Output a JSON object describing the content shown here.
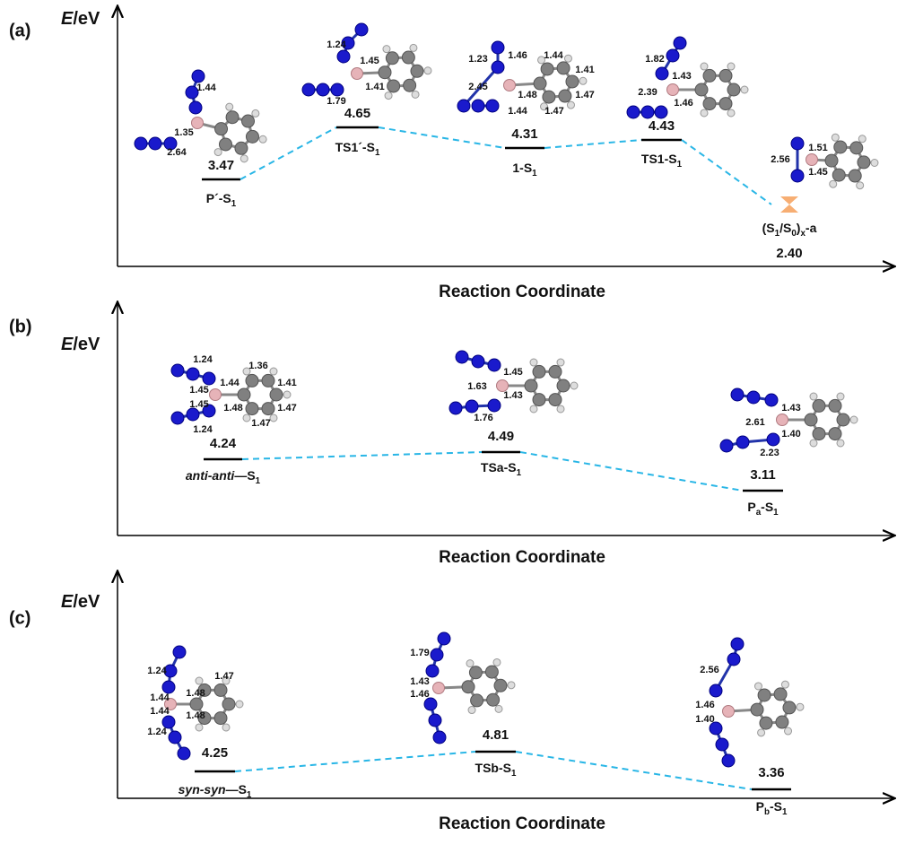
{
  "panels": [
    {
      "label": "(a)",
      "y_label": [
        {
          "i": "E"
        },
        "/eV"
      ],
      "x_label": "Reaction Coordinate",
      "states": [
        {
          "name": [
            "P´-S",
            {
              "sub": "1"
            }
          ],
          "energy": "3.47",
          "bond_lengths": [
            "1.44",
            "1.35",
            "2.64"
          ]
        },
        {
          "name": [
            "TS1´-S",
            {
              "sub": "1"
            }
          ],
          "energy": "4.65",
          "bond_lengths": [
            "1.24",
            "1.45",
            "1.79",
            "1.41"
          ]
        },
        {
          "name": [
            "1-S",
            {
              "sub": "1"
            }
          ],
          "energy": "4.31",
          "bond_lengths": [
            "1.23",
            "1.46",
            "1.44",
            "1.41",
            "2.45",
            "1.48",
            "1.47",
            "1.44",
            "1.47"
          ]
        },
        {
          "name": [
            "TS1-S",
            {
              "sub": "1"
            }
          ],
          "energy": "4.43",
          "bond_lengths": [
            "1.82",
            "1.43",
            "2.39",
            "1.46"
          ]
        },
        {
          "name": [
            "(S",
            {
              "sub": "1"
            },
            "/S",
            {
              "sub": "0"
            },
            ")",
            {
              "sub": "x"
            },
            "-a"
          ],
          "energy": "2.40",
          "bond_lengths": [
            "1.51",
            "2.56",
            "1.45"
          ]
        }
      ]
    },
    {
      "label": "(b)",
      "y_label": [
        {
          "i": "E"
        },
        "/eV"
      ],
      "x_label": "Reaction Coordinate",
      "states": [
        {
          "name": [
            {
              "i": "anti-anti"
            },
            "—S",
            {
              "sub": "1"
            }
          ],
          "energy": "4.24",
          "bond_lengths": [
            "1.24",
            "1.36",
            "1.44",
            "1.41",
            "1.45",
            "1.45",
            "1.48",
            "1.47",
            "1.47",
            "1.24"
          ]
        },
        {
          "name": [
            "TSa-S",
            {
              "sub": "1"
            }
          ],
          "energy": "4.49",
          "bond_lengths": [
            "1.45",
            "1.63",
            "1.43",
            "1.76"
          ]
        },
        {
          "name": [
            "P",
            {
              "sub": "a"
            },
            "-S",
            {
              "sub": "1"
            }
          ],
          "energy": "3.11",
          "bond_lengths": [
            "1.43",
            "2.61",
            "1.40",
            "2.23"
          ]
        }
      ]
    },
    {
      "label": "(c)",
      "y_label": [
        {
          "i": "E"
        },
        "/eV"
      ],
      "x_label": "Reaction Coordinate",
      "states": [
        {
          "name": [
            {
              "i": "syn-syn"
            },
            "—S",
            {
              "sub": "1"
            }
          ],
          "energy": "4.25",
          "bond_lengths": [
            "1.24",
            "1.47",
            "1.44",
            "1.48",
            "1.44",
            "1.48",
            "1.24"
          ]
        },
        {
          "name": [
            "TSb-S",
            {
              "sub": "1"
            }
          ],
          "energy": "4.81",
          "bond_lengths": [
            "1.79",
            "1.43",
            "1.46"
          ]
        },
        {
          "name": [
            "P",
            {
              "sub": "b"
            },
            "-S",
            {
              "sub": "1"
            }
          ],
          "energy": "3.36",
          "bond_lengths": [
            "2.56",
            "1.46",
            "1.40"
          ]
        }
      ]
    }
  ]
}
